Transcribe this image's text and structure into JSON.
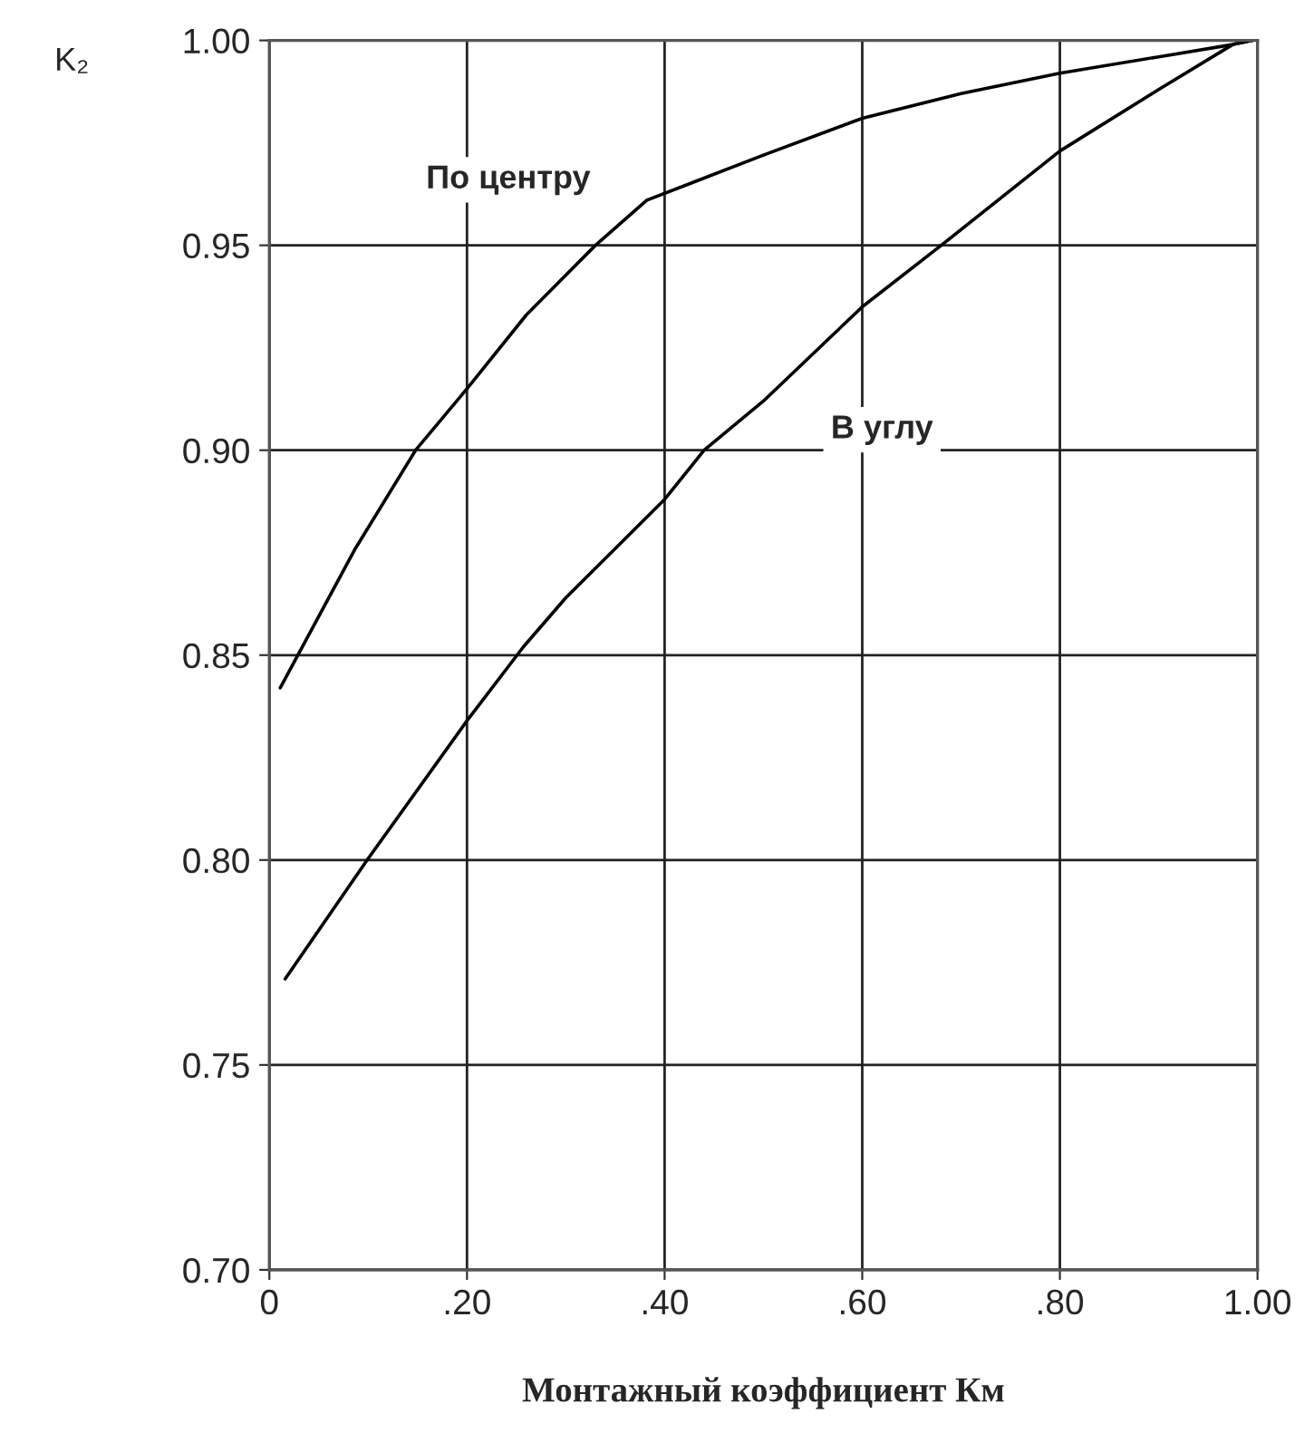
{
  "chart_data": {
    "type": "line",
    "xlabel": "Монтажный коэффициент Км",
    "ylabel": "K₂",
    "xlim": [
      0,
      1
    ],
    "ylim": [
      0.7,
      1.0
    ],
    "xticks": [
      {
        "value": 0,
        "label": "0"
      },
      {
        "value": 0.2,
        "label": ".20"
      },
      {
        "value": 0.4,
        "label": ".40"
      },
      {
        "value": 0.6,
        "label": ".60"
      },
      {
        "value": 0.8,
        "label": ".80"
      },
      {
        "value": 1.0,
        "label": "1.00"
      }
    ],
    "yticks": [
      {
        "value": 0.7,
        "label": "0.70"
      },
      {
        "value": 0.75,
        "label": "0.75"
      },
      {
        "value": 0.8,
        "label": "0.80"
      },
      {
        "value": 0.85,
        "label": "0.85"
      },
      {
        "value": 0.9,
        "label": "0.90"
      },
      {
        "value": 0.95,
        "label": "0.95"
      },
      {
        "value": 1.0,
        "label": "1.00"
      }
    ],
    "grid": true,
    "marker": "none",
    "line_style": "solid",
    "series": [
      {
        "name": "По центру",
        "color": "#000000",
        "x": [
          0.011,
          0.087,
          0.148,
          0.2,
          0.26,
          0.33,
          0.382,
          0.5,
          0.6,
          0.7,
          0.8,
          0.9,
          0.975,
          0.995
        ],
        "values": [
          0.842,
          0.876,
          0.9,
          0.915,
          0.933,
          0.95,
          0.961,
          0.972,
          0.981,
          0.987,
          0.992,
          0.996,
          0.999,
          1.0
        ]
      },
      {
        "name": "В углу",
        "color": "#000000",
        "x": [
          0.016,
          0.099,
          0.2,
          0.257,
          0.3,
          0.4,
          0.44,
          0.5,
          0.6,
          0.68,
          0.8,
          0.9,
          0.975,
          0.995
        ],
        "values": [
          0.771,
          0.8,
          0.834,
          0.852,
          0.864,
          0.888,
          0.9,
          0.912,
          0.935,
          0.95,
          0.973,
          0.988,
          0.999,
          1.0
        ]
      }
    ]
  }
}
